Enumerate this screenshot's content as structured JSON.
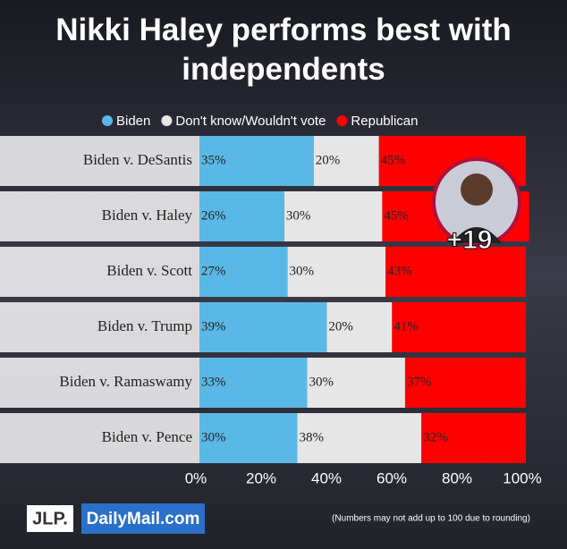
{
  "chart_data": {
    "type": "stacked-bar",
    "orientation": "horizontal",
    "title": "Nikki Haley performs best with independents",
    "categories": [
      "Biden v. DeSantis",
      "Biden v. Haley",
      "Biden v. Scott",
      "Biden v. Trump",
      "Biden v. Ramaswamy",
      "Biden v. Pence"
    ],
    "series": [
      {
        "name": "Biden",
        "color": "#5ab8e6",
        "values": [
          35,
          26,
          27,
          39,
          33,
          30
        ],
        "value_labels": [
          "35%",
          "26%",
          "27%",
          "39%",
          "33%",
          "30%"
        ]
      },
      {
        "name": "Don't know/Wouldn't vote",
        "color": "#e6e6e6",
        "values": [
          20,
          30,
          30,
          20,
          30,
          38
        ],
        "value_labels": [
          "20%",
          "30%",
          "30%",
          "20%",
          "30%",
          "38%"
        ]
      },
      {
        "name": "Republican",
        "color": "#ff0000",
        "values": [
          45,
          45,
          43,
          41,
          37,
          32
        ],
        "value_labels": [
          "45%",
          "45%",
          "43%",
          "41%",
          "37%",
          "32%"
        ]
      }
    ],
    "xlim": [
      0,
      100
    ],
    "xticks": [
      {
        "value": 0,
        "label": "0%"
      },
      {
        "value": 20,
        "label": "20%"
      },
      {
        "value": 40,
        "label": "40%"
      },
      {
        "value": 60,
        "label": "60%"
      },
      {
        "value": 80,
        "label": "80%"
      },
      {
        "value": 100,
        "label": "100%"
      }
    ],
    "annotations": [
      "+19"
    ],
    "legend": "top"
  },
  "footer": {
    "logos": [
      "JLP.",
      "DailyMail.com"
    ],
    "note": "(Numbers may not add up to 100 due to rounding)"
  }
}
